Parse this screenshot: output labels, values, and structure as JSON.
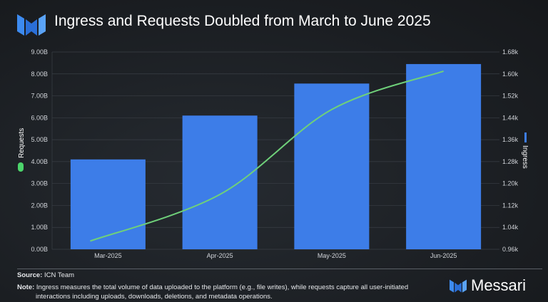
{
  "header": {
    "title": "Ingress and Requests Doubled from March to June 2025"
  },
  "chart_data": {
    "type": "bar+line",
    "title": "Ingress and Requests Doubled from March to June 2025",
    "categories": [
      "Mar-2025",
      "Apr-2025",
      "May-2025",
      "Jun-2025"
    ],
    "series": [
      {
        "name": "Requests",
        "type": "bar",
        "axis": "left",
        "color": "#3d7de8",
        "values": [
          4.1,
          6.1,
          7.56,
          8.45
        ]
      },
      {
        "name": "Ingress",
        "type": "line",
        "axis": "right",
        "color": "#6fd07a",
        "values": [
          0.99,
          1.16,
          1.47,
          1.61
        ]
      }
    ],
    "left_axis": {
      "label": "Requests",
      "legend_color": "#4cd46b",
      "ylim": [
        0,
        9
      ],
      "ticks": [
        "0.00B",
        "1.00B",
        "2.00B",
        "3.00B",
        "4.00B",
        "5.00B",
        "6.00B",
        "7.00B",
        "8.00B",
        "9.00B"
      ]
    },
    "right_axis": {
      "label": "Ingress",
      "legend_color": "#3d7de8",
      "ylim": [
        0.96,
        1.68
      ],
      "ticks": [
        "0.96k",
        "1.04k",
        "1.12k",
        "1.20k",
        "1.28k",
        "1.36k",
        "1.44k",
        "1.52k",
        "1.60k",
        "1.68k"
      ]
    },
    "grid": true
  },
  "footer": {
    "source_label": "Source:",
    "source": "ICN Team",
    "note_label": "Note:",
    "note_line1": "Ingress measures the total volume of data uploaded to the platform (e.g., file writes), while requests capture all user-initiated",
    "note_line2": "interactions including uploads, downloads, deletions, and metadata operations.",
    "brand": "Messari"
  }
}
